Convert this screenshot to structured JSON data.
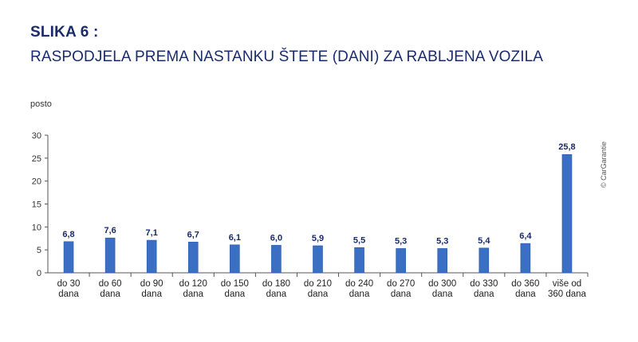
{
  "header": {
    "title": "SLIKA 6 :",
    "subtitle": "RASPODJELA PREMA NASTANKU ŠTETE (DANI) ZA RABLJENA VOZILA"
  },
  "copyright": "© CarGarantie",
  "colors": {
    "bar": "#3a6fc4",
    "bar_edge": "#2c58a5",
    "title": "#1a2b6b",
    "axis": "#555555"
  },
  "chart_data": {
    "type": "bar",
    "ylabel": "posto",
    "xlabel": "",
    "ylim": [
      0,
      30
    ],
    "yticks": [
      0,
      5,
      10,
      15,
      20,
      25,
      30
    ],
    "grid": false,
    "categories": [
      [
        "do 30",
        "dana"
      ],
      [
        "do 60",
        "dana"
      ],
      [
        "do 90",
        "dana"
      ],
      [
        "do 120",
        "dana"
      ],
      [
        "do 150",
        "dana"
      ],
      [
        "do 180",
        "dana"
      ],
      [
        "do 210",
        "dana"
      ],
      [
        "do 240",
        "dana"
      ],
      [
        "do 270",
        "dana"
      ],
      [
        "do 300",
        "dana"
      ],
      [
        "do 330",
        "dana"
      ],
      [
        "do 360",
        "dana"
      ],
      [
        "više od",
        "360 dana"
      ]
    ],
    "values": [
      6.8,
      7.6,
      7.1,
      6.7,
      6.1,
      6.0,
      5.9,
      5.5,
      5.3,
      5.3,
      5.4,
      6.4,
      25.8
    ],
    "value_labels": [
      "6,8",
      "7,6",
      "7,1",
      "6,7",
      "6,1",
      "6,0",
      "5,9",
      "5,5",
      "5,3",
      "5,3",
      "5,4",
      "6,4",
      "25,8"
    ]
  }
}
